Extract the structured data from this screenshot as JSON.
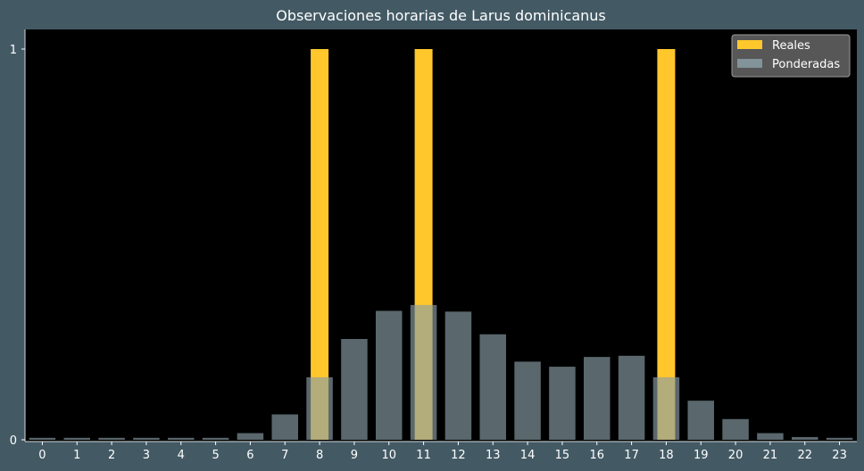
{
  "chart_data": {
    "type": "bar",
    "title": "Observaciones horarias de Larus dominicanus",
    "xlabel": "",
    "ylabel": "",
    "categories": [
      "0",
      "1",
      "2",
      "3",
      "4",
      "5",
      "6",
      "7",
      "8",
      "9",
      "10",
      "11",
      "12",
      "13",
      "14",
      "15",
      "16",
      "17",
      "18",
      "19",
      "20",
      "21",
      "22",
      "23"
    ],
    "ylim": [
      0,
      1.05
    ],
    "yticks": [
      "0",
      "1"
    ],
    "legend_position": "top-right",
    "grid": false,
    "series": [
      {
        "name": "Reales",
        "color": "#ffc72c",
        "values": [
          0,
          0,
          0,
          0,
          0,
          0,
          0,
          0,
          1,
          0,
          0,
          1,
          0,
          0,
          0,
          0,
          0,
          0,
          1,
          0,
          0,
          0,
          0,
          0
        ]
      },
      {
        "name": "Ponderadas",
        "color": "#8a9ea6",
        "values": [
          0.005,
          0.005,
          0.005,
          0.005,
          0.005,
          0.005,
          0.017,
          0.065,
          0.16,
          0.258,
          0.33,
          0.345,
          0.328,
          0.27,
          0.2,
          0.187,
          0.212,
          0.215,
          0.16,
          0.1,
          0.053,
          0.017,
          0.007,
          0.005
        ]
      }
    ]
  }
}
